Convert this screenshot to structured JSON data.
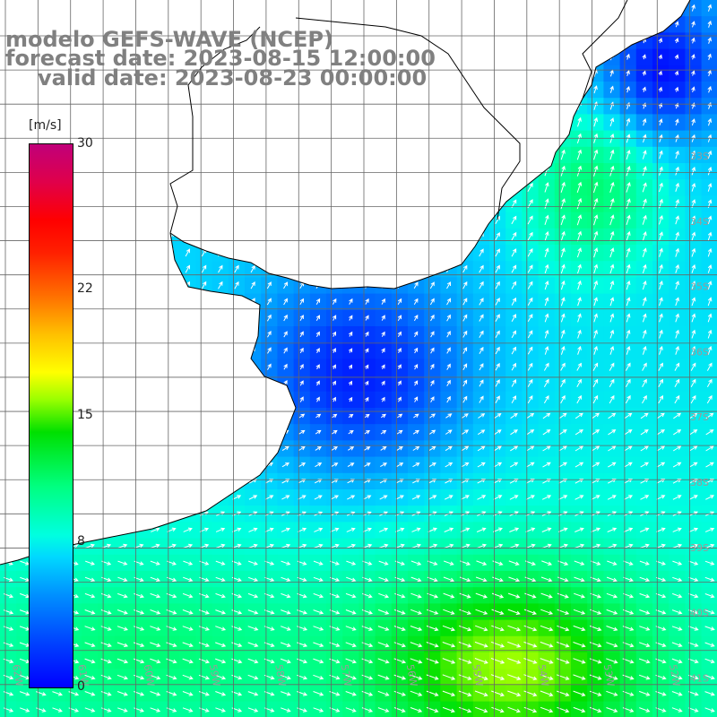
{
  "title": {
    "line1": "modelo GEFS-WAVE (NCEP)",
    "line2": "forecast date: 2023-08-15 12:00:00",
    "line3": "valid date: 2023-08-23 00:00:00"
  },
  "colorbar": {
    "unit": "[m/s]",
    "min": 0,
    "max": 30,
    "ticks": [
      {
        "label": "30",
        "value": 30
      },
      {
        "label": "22",
        "value": 22
      },
      {
        "label": "15",
        "value": 15
      },
      {
        "label": "8",
        "value": 8
      },
      {
        "label": "0",
        "value": 0
      }
    ]
  },
  "map": {
    "lon_range": [
      -62,
      -51
    ],
    "lat_range": [
      -41.5,
      -31
    ],
    "lon_labels": [
      "62W",
      "61W",
      "60W",
      "59W",
      "58W",
      "57W",
      "56W",
      "55W",
      "54W",
      "53W",
      "52W",
      "51W"
    ],
    "lat_labels": [
      "33S",
      "34S",
      "35S",
      "36S",
      "37S",
      "38S",
      "39S",
      "40S",
      "41S"
    ]
  }
}
